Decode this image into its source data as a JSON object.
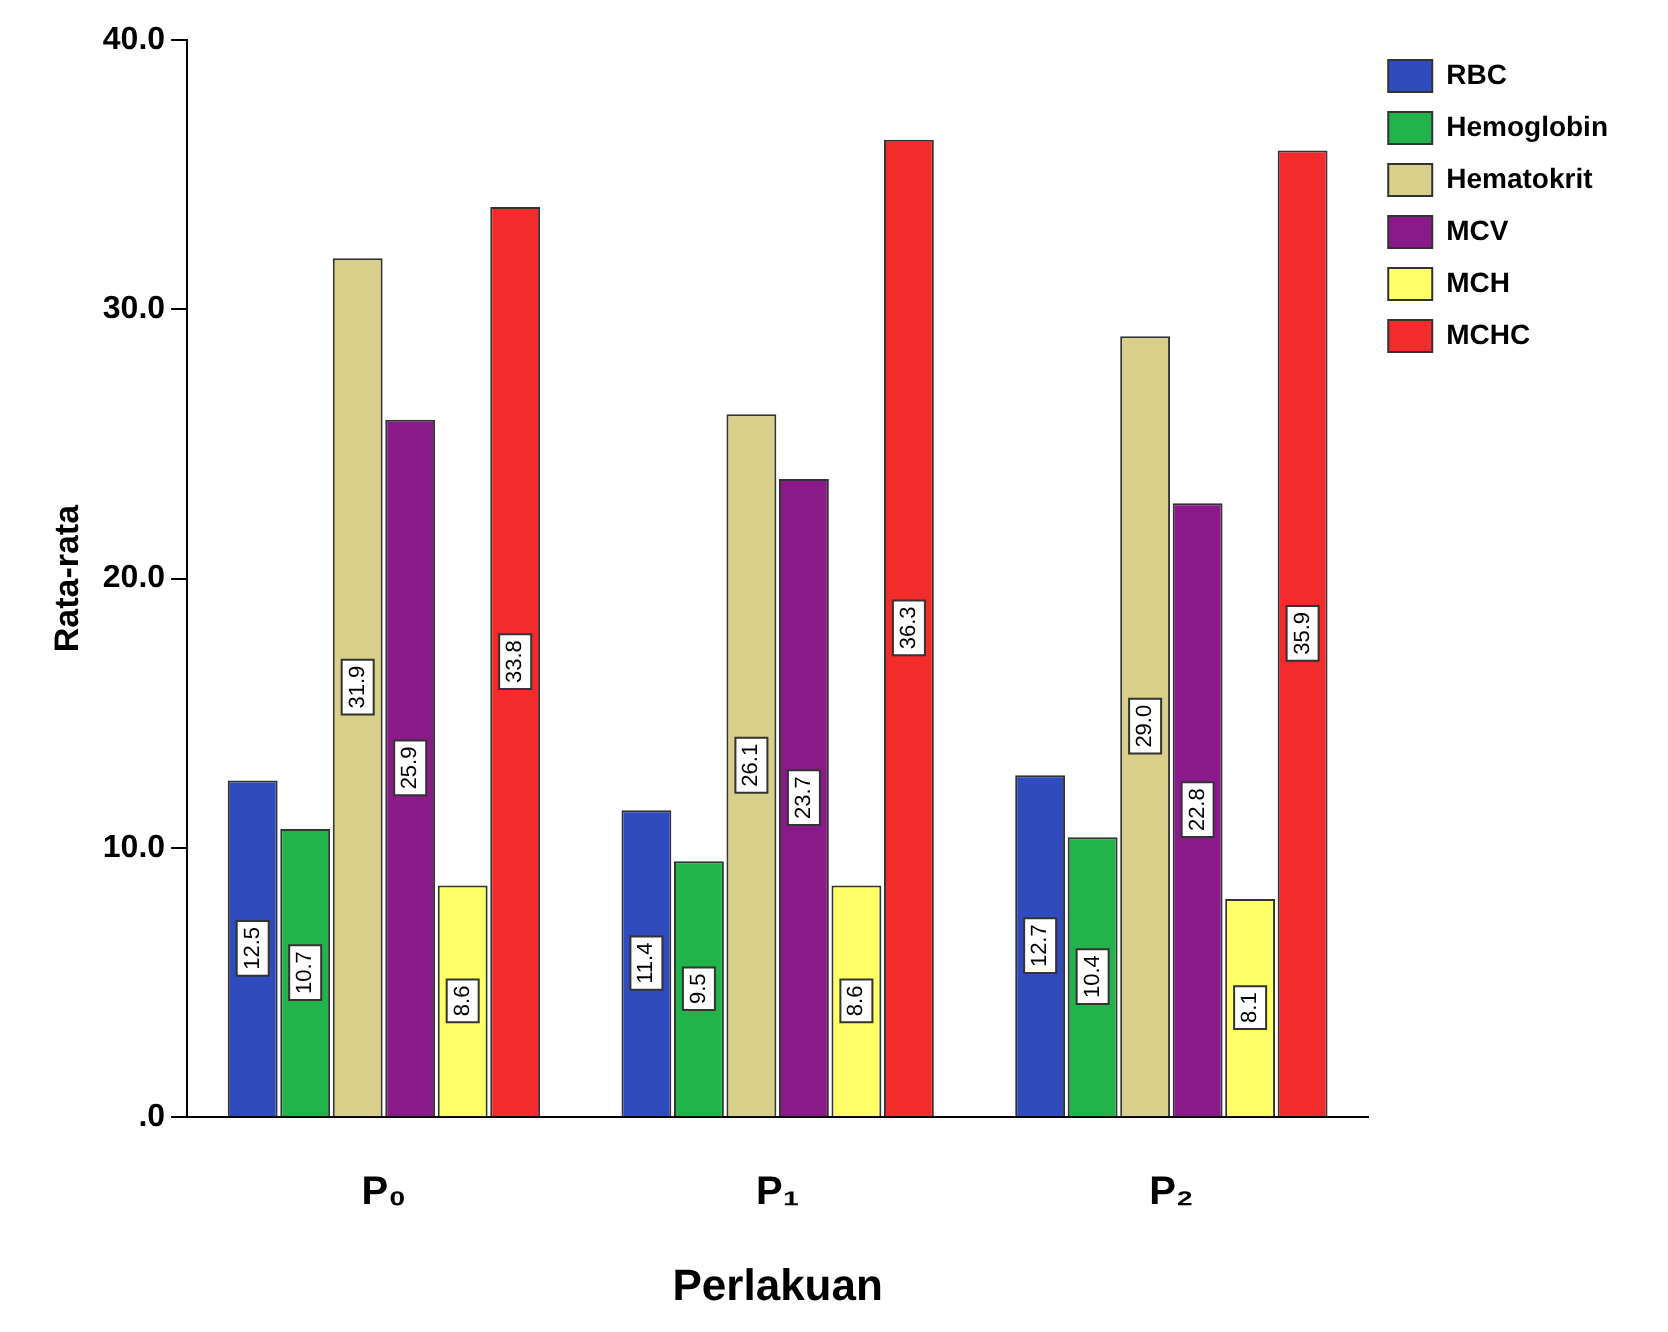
{
  "chart_data": {
    "type": "bar",
    "xlabel": "Perlakuan",
    "ylabel": "Rata-rata",
    "categories": [
      "P₀",
      "P₁",
      "P₂"
    ],
    "series": [
      {
        "name": "RBC",
        "color": "#2f4bbd",
        "values": [
          12.5,
          11.4,
          12.7
        ],
        "value_labels": [
          "12.5",
          "11.4",
          "12.7"
        ]
      },
      {
        "name": "Hemoglobin",
        "color": "#22b34a",
        "values": [
          10.7,
          9.5,
          10.4
        ],
        "value_labels": [
          "10.7",
          "9.5",
          "10.4"
        ]
      },
      {
        "name": "Hematokrit",
        "color": "#d8d08a",
        "values": [
          31.9,
          26.1,
          29.0
        ],
        "value_labels": [
          "31.9",
          "26.1",
          "29.0"
        ]
      },
      {
        "name": "MCV",
        "color": "#8a1a8a",
        "values": [
          25.9,
          23.7,
          22.8
        ],
        "value_labels": [
          "25.9",
          "23.7",
          "22.8"
        ]
      },
      {
        "name": "MCH",
        "color": "#ffff66",
        "values": [
          8.6,
          8.6,
          8.1
        ],
        "value_labels": [
          "8.6",
          "8.6",
          "8.1"
        ]
      },
      {
        "name": "MCHC",
        "color": "#f32b2b",
        "values": [
          33.8,
          36.3,
          35.9
        ],
        "value_labels": [
          "33.8",
          "36.3",
          "35.9"
        ]
      }
    ],
    "ylim": [
      0,
      40
    ],
    "yticks": [
      {
        "value": 0,
        "label": ".0"
      },
      {
        "value": 10,
        "label": "10.0"
      },
      {
        "value": 20,
        "label": "20.0"
      },
      {
        "value": 30,
        "label": "30.0"
      },
      {
        "value": 40,
        "label": "40.0"
      }
    ],
    "grid": false,
    "legend": "top right"
  }
}
